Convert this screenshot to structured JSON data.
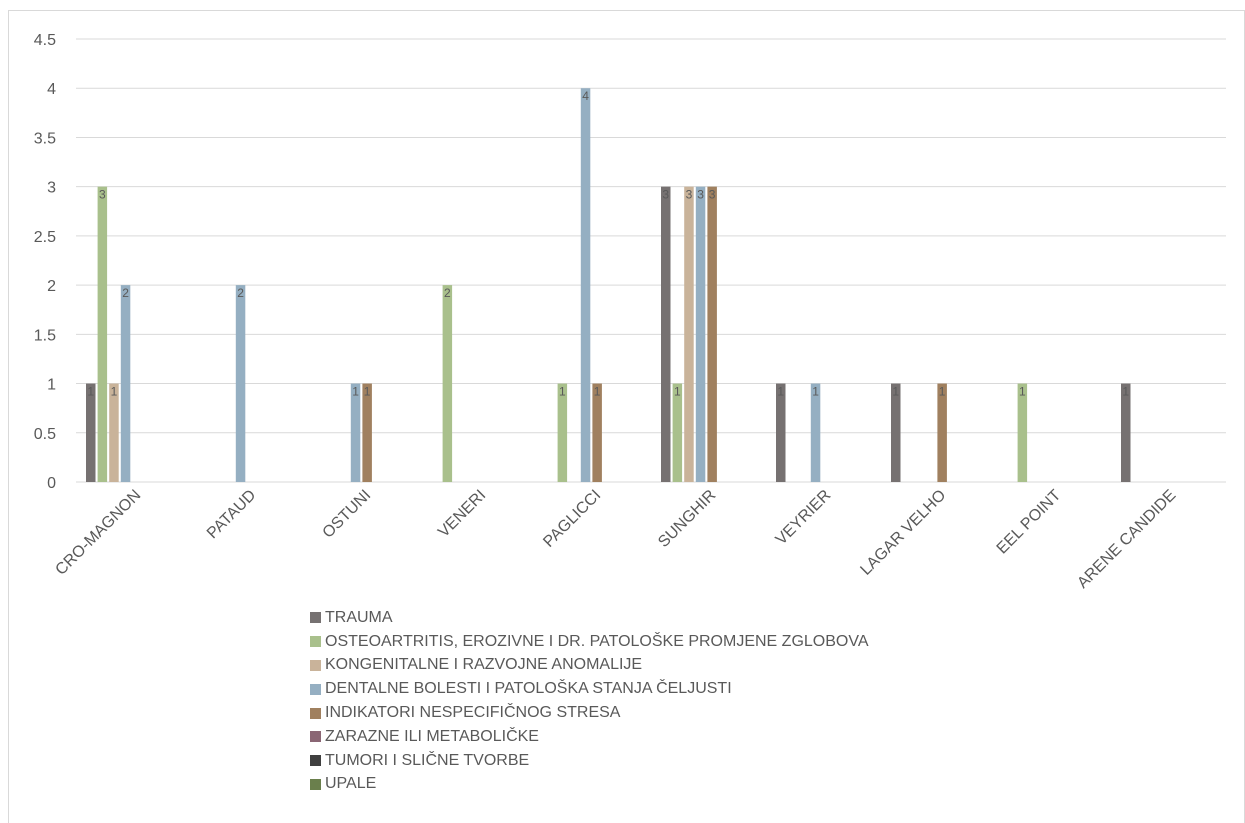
{
  "chart_data": {
    "type": "bar",
    "categories": [
      "CRO-MAGNON",
      "PATAUD",
      "OSTUNI",
      "VENERI",
      "PAGLICCI",
      "SUNGHIR",
      "VEYRIER",
      "LAGAR VELHO",
      "EEL POINT",
      "ARENE CANDIDE"
    ],
    "ylim": [
      0,
      4.5
    ],
    "yticks": [
      "0",
      "0.5",
      "1",
      "1.5",
      "2",
      "2.5",
      "3",
      "3.5",
      "4",
      "4.5"
    ],
    "grid": true,
    "legend_position": "bottom",
    "data_labels": true,
    "series": [
      {
        "name": "TRAUMA",
        "color": "#767171",
        "values": [
          1,
          0,
          0,
          0,
          0,
          3,
          1,
          1,
          0,
          1
        ]
      },
      {
        "name": "OSTEOARTRITIS, EROZIVNE I DR. PATOLOŠKE PROMJENE ZGLOBOVA",
        "color": "#A9C08C",
        "values": [
          3,
          0,
          0,
          2,
          1,
          1,
          0,
          0,
          1,
          0
        ]
      },
      {
        "name": "KONGENITALNE I RAZVOJNE ANOMALIJE",
        "color": "#C9B39A",
        "values": [
          1,
          0,
          0,
          0,
          0,
          3,
          0,
          0,
          0,
          0
        ]
      },
      {
        "name": "DENTALNE BOLESTI I PATOLOŠKA STANJA ČELJUSTI",
        "color": "#95AFC2",
        "values": [
          2,
          2,
          1,
          0,
          4,
          3,
          1,
          0,
          0,
          0
        ]
      },
      {
        "name": "INDIKATORI NESPECIFIČNOG STRESA",
        "color": "#A0805F",
        "values": [
          0,
          0,
          1,
          0,
          1,
          3,
          0,
          1,
          0,
          0
        ]
      },
      {
        "name": "ZARAZNE ILI METABOLIČKE",
        "color": "#8A6674",
        "values": [
          0,
          0,
          0,
          0,
          0,
          0,
          0,
          0,
          0,
          0
        ]
      },
      {
        "name": "TUMORI I SLIČNE TVORBE",
        "color": "#3F3F3F",
        "values": [
          0,
          0,
          0,
          0,
          0,
          0,
          0,
          0,
          0,
          0
        ]
      },
      {
        "name": "UPALE",
        "color": "#6A7F4C",
        "values": [
          0,
          0,
          0,
          0,
          0,
          0,
          0,
          0,
          0,
          0
        ]
      }
    ]
  }
}
